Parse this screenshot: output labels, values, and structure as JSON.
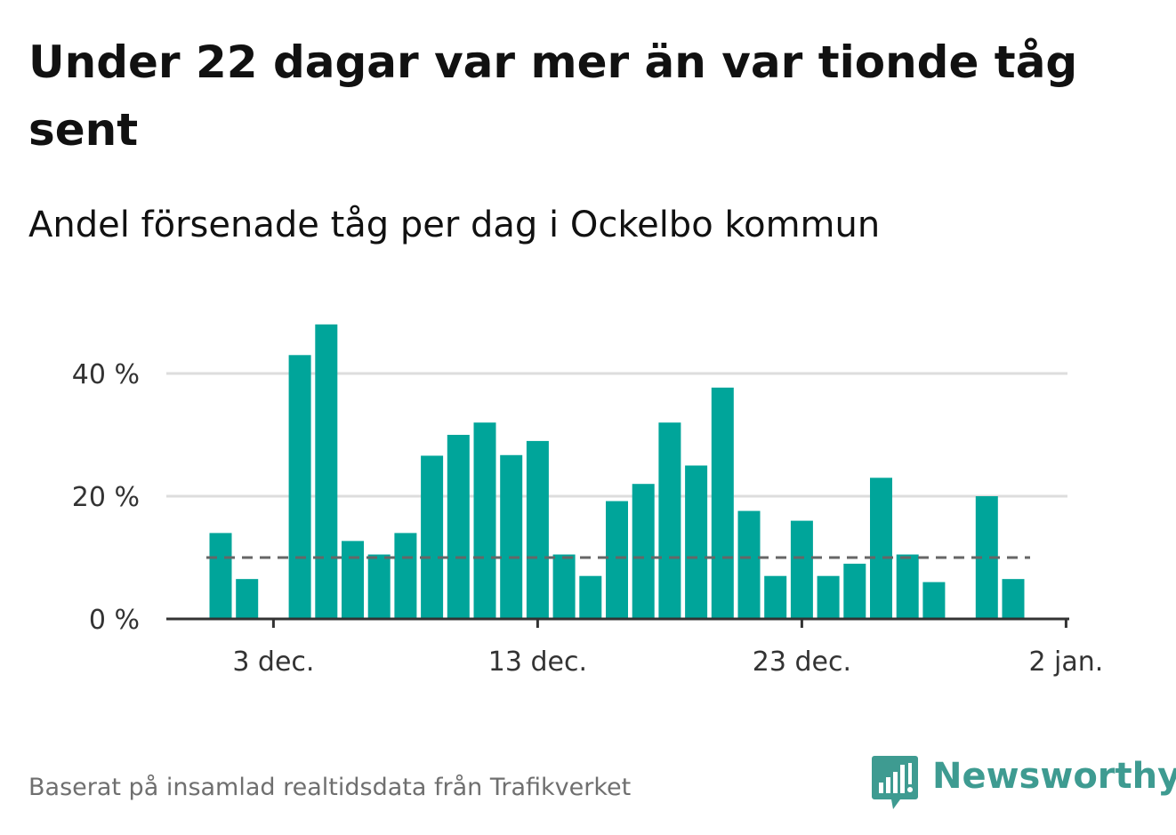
{
  "title": "Under 22 dagar var mer än var tionde tåg sent",
  "subtitle": "Andel försenade tåg per dag i Ockelbo kommun",
  "footer": "Baserat på insamlad realtidsdata från Trafikverket",
  "brand": {
    "name": "Newsworthy",
    "icon": "bar-chart-speech-bubble-icon",
    "color": "#3e9b91"
  },
  "colors": {
    "bar": "#00a59a",
    "reference": "#666666",
    "grid": "#dddddd",
    "axis": "#333333"
  },
  "chart_data": {
    "type": "bar",
    "x_unit": "date",
    "x": [
      "2023-12-01",
      "2023-12-02",
      "2023-12-03",
      "2023-12-04",
      "2023-12-05",
      "2023-12-06",
      "2023-12-07",
      "2023-12-08",
      "2023-12-09",
      "2023-12-10",
      "2023-12-11",
      "2023-12-12",
      "2023-12-13",
      "2023-12-14",
      "2023-12-15",
      "2023-12-16",
      "2023-12-17",
      "2023-12-18",
      "2023-12-19",
      "2023-12-20",
      "2023-12-21",
      "2023-12-22",
      "2023-12-23",
      "2023-12-24",
      "2023-12-25",
      "2023-12-26",
      "2023-12-27",
      "2023-12-28",
      "2023-12-29",
      "2023-12-30",
      "2023-12-31",
      "2024-01-01"
    ],
    "values": [
      14,
      6.5,
      null,
      43,
      48,
      12.7,
      10.5,
      14,
      26.6,
      30,
      32,
      26.7,
      29,
      10.5,
      7,
      19.2,
      22,
      32,
      25,
      37.7,
      17.6,
      7,
      16,
      7,
      9,
      23,
      10.5,
      6,
      null,
      20,
      6.5,
      null
    ],
    "unit": "%",
    "reference_line": 10,
    "ylim": [
      0,
      48
    ],
    "y_ticks": [
      {
        "value": 0,
        "label": "0 %"
      },
      {
        "value": 20,
        "label": "20 %"
      },
      {
        "value": 40,
        "label": "40 %"
      }
    ],
    "x_ticks": [
      {
        "date": "2023-12-03",
        "label": "3 dec."
      },
      {
        "date": "2023-12-13",
        "label": "13 dec."
      },
      {
        "date": "2023-12-23",
        "label": "23 dec."
      },
      {
        "date": "2024-01-02",
        "label": "2 jan."
      }
    ],
    "grid": true,
    "legend": "none"
  }
}
